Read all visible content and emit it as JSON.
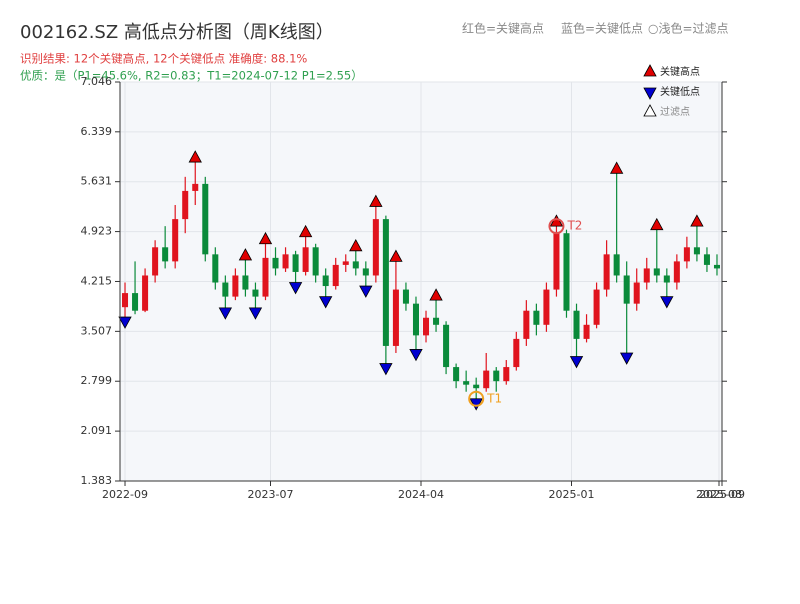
{
  "chart_data": {
    "type": "candlestick",
    "title": "002162.SZ 高低点分析图（周K线图）",
    "subtitle": "识别结果: 12个关键高点, 12个关键低点  准确度: 88.1%",
    "subtitle2": "优质：是（P1=45.6%, R2=0.83；T1=2024-07-12 P1=2.55）",
    "header_legend": [
      "红色=关键高点",
      "蓝色=关键低点",
      "○浅色=过滤点"
    ],
    "up_color": "#e0141e",
    "down_color": "#0a8a3a",
    "open": [
      3.85,
      4.05,
      3.8,
      4.3,
      4.7,
      4.5,
      5.1,
      5.5,
      5.6,
      4.6,
      4.2,
      4.0,
      4.3,
      4.1,
      4.0,
      4.55,
      4.4,
      4.6,
      4.35,
      4.7,
      4.3,
      4.15,
      4.45,
      4.5,
      4.4,
      4.3,
      5.1,
      3.3,
      4.1,
      3.9,
      3.45,
      3.7,
      3.6,
      3.0,
      2.8,
      2.75,
      2.7,
      2.95,
      2.8,
      3.0,
      3.4,
      3.8,
      3.6,
      4.1,
      4.9,
      3.8,
      3.4,
      3.6,
      4.1,
      4.6,
      4.3,
      3.9,
      4.2,
      4.4,
      4.3,
      4.2,
      4.5,
      4.7,
      4.6,
      4.45
    ],
    "high": [
      4.2,
      4.5,
      4.4,
      4.8,
      5.0,
      5.3,
      5.7,
      5.91,
      5.7,
      4.7,
      4.3,
      4.4,
      4.52,
      4.2,
      4.75,
      4.7,
      4.7,
      4.65,
      4.85,
      4.75,
      4.4,
      4.55,
      4.6,
      4.65,
      4.5,
      5.28,
      5.15,
      4.5,
      4.2,
      4.0,
      3.8,
      3.95,
      3.65,
      3.05,
      2.95,
      2.85,
      3.2,
      3.0,
      3.1,
      3.5,
      3.95,
      3.9,
      4.2,
      5.0,
      4.95,
      3.9,
      3.75,
      4.2,
      4.8,
      5.75,
      4.5,
      4.4,
      4.55,
      4.95,
      4.4,
      4.6,
      4.85,
      5.0,
      4.7,
      4.6
    ],
    "low": [
      3.71,
      3.75,
      3.78,
      4.2,
      4.4,
      4.4,
      4.9,
      5.3,
      4.5,
      4.1,
      3.84,
      3.95,
      4.0,
      3.84,
      3.95,
      4.3,
      4.35,
      4.2,
      4.3,
      4.2,
      4.0,
      4.1,
      4.35,
      4.3,
      4.15,
      4.2,
      3.05,
      3.2,
      3.8,
      3.25,
      3.35,
      3.5,
      2.9,
      2.7,
      2.65,
      2.55,
      2.65,
      2.65,
      2.75,
      2.95,
      3.3,
      3.45,
      3.5,
      4.0,
      3.7,
      3.15,
      3.35,
      3.55,
      4.0,
      4.2,
      3.2,
      3.8,
      4.1,
      4.2,
      4.0,
      4.1,
      4.4,
      4.5,
      4.35,
      4.3
    ],
    "close": [
      4.05,
      3.8,
      4.3,
      4.7,
      4.5,
      5.1,
      5.5,
      5.6,
      4.6,
      4.2,
      4.0,
      4.3,
      4.1,
      4.0,
      4.55,
      4.4,
      4.6,
      4.35,
      4.7,
      4.3,
      4.15,
      4.45,
      4.5,
      4.4,
      4.3,
      5.1,
      3.3,
      4.1,
      3.9,
      3.45,
      3.7,
      3.6,
      3.0,
      2.8,
      2.75,
      2.7,
      2.95,
      2.8,
      3.0,
      3.4,
      3.8,
      3.6,
      4.1,
      4.9,
      3.8,
      3.4,
      3.6,
      4.1,
      4.6,
      4.3,
      3.9,
      4.2,
      4.4,
      4.3,
      4.2,
      4.5,
      4.7,
      4.6,
      4.45,
      4.4
    ],
    "series": [
      {
        "name": "关键高点",
        "color": "#e00000",
        "marker": "up",
        "x": [
          7,
          12,
          14,
          18,
          23,
          25,
          27,
          31,
          43,
          49,
          53,
          57
        ],
        "values": [
          5.91,
          4.52,
          4.75,
          4.85,
          4.65,
          5.28,
          4.5,
          3.95,
          5.0,
          5.75,
          4.95,
          5.0
        ]
      },
      {
        "name": "关键低点",
        "color": "#0000d0",
        "marker": "down",
        "x": [
          0,
          10,
          13,
          17,
          20,
          24,
          26,
          29,
          35,
          45,
          50,
          54
        ],
        "values": [
          3.71,
          3.84,
          3.84,
          4.2,
          4.0,
          4.15,
          3.05,
          3.25,
          2.55,
          3.15,
          3.2,
          4.0
        ]
      },
      {
        "name": "过滤点",
        "color": "#ffffff",
        "marker": "up",
        "x": [],
        "values": []
      }
    ],
    "annotations": [
      {
        "text": "T1",
        "color": "#f0a020",
        "x": 35,
        "y": 2.55
      },
      {
        "text": "T2",
        "color": "#e05050",
        "x": 43,
        "y": 5.0
      }
    ],
    "xlim": [
      -0.5,
      59.5
    ],
    "xticks": [
      {
        "value": 0,
        "label": "2022-09"
      },
      {
        "value": 14.5,
        "label": "2023-07"
      },
      {
        "value": 29.5,
        "label": "2024-04"
      },
      {
        "value": 44.5,
        "label": "2025-01"
      },
      {
        "value": 59.2,
        "label": "2025-08"
      },
      {
        "value": 59.5,
        "label": "2025-09"
      }
    ],
    "ylim": [
      1.383,
      7.046
    ],
    "yticks": [
      1.383,
      2.091,
      2.799,
      3.507,
      4.215,
      4.923,
      5.631,
      6.339,
      7.046
    ],
    "grid": true
  }
}
